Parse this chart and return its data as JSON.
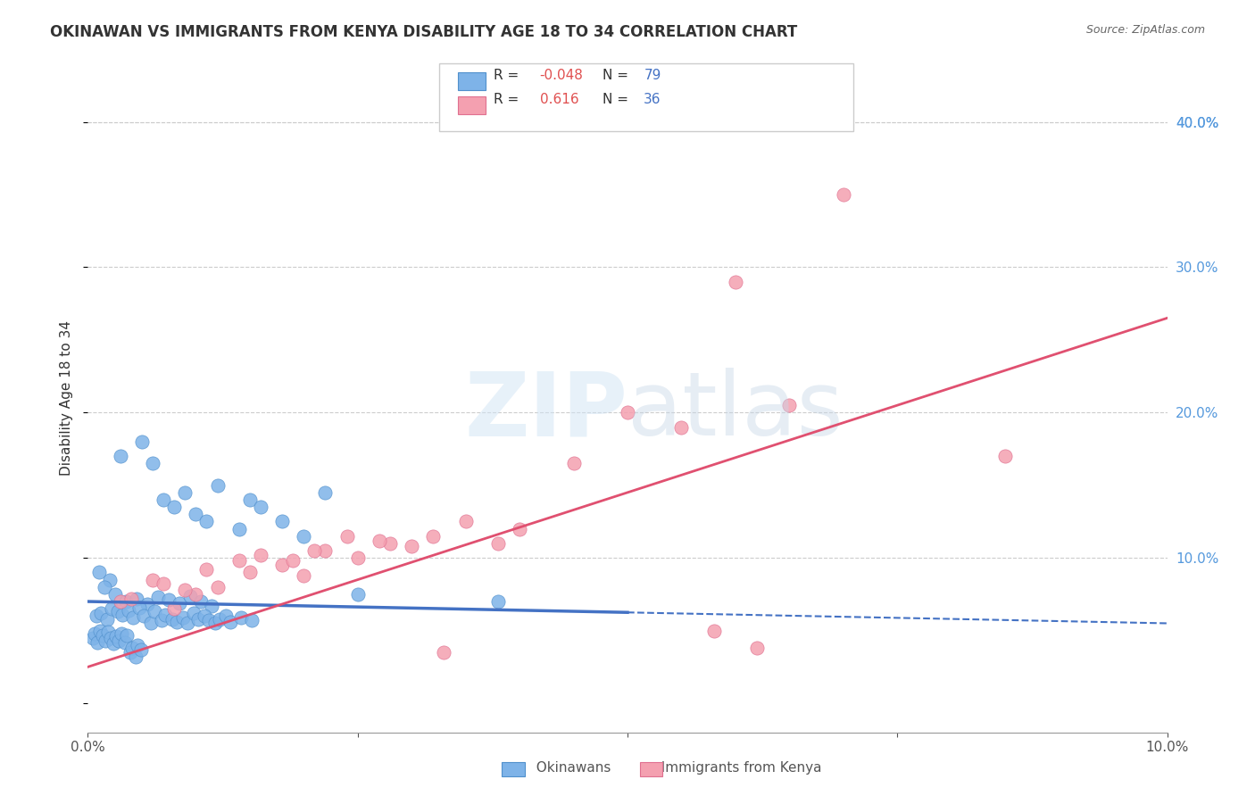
{
  "title": "OKINAWAN VS IMMIGRANTS FROM KENYA DISABILITY AGE 18 TO 34 CORRELATION CHART",
  "source": "Source: ZipAtlas.com",
  "xlabel": "",
  "ylabel": "Disability Age 18 to 34",
  "xlim": [
    0.0,
    10.0
  ],
  "ylim": [
    -2.0,
    44.0
  ],
  "x_tick_labels": [
    "0.0%",
    "10.0%"
  ],
  "x_tick_positions": [
    0.0,
    10.0
  ],
  "y_tick_labels": [
    "10.0%",
    "20.0%",
    "30.0%",
    "40.0%"
  ],
  "y_tick_positions": [
    10.0,
    20.0,
    30.0,
    40.0
  ],
  "okinawan_color": "#7EB3E8",
  "kenya_color": "#F4A0B0",
  "okinawan_R": -0.048,
  "okinawan_N": 79,
  "kenya_R": 0.616,
  "kenya_N": 36,
  "legend_label_1": "R = -0.048   N = 79",
  "legend_label_2": "R =  0.616   N = 36",
  "watermark": "ZIPatlas",
  "background_color": "#ffffff",
  "okinawan_x": [
    0.3,
    0.5,
    0.6,
    0.7,
    0.8,
    0.9,
    1.0,
    1.1,
    1.2,
    1.4,
    1.5,
    1.6,
    1.8,
    2.0,
    2.2,
    2.5,
    3.8,
    0.1,
    0.2,
    0.15,
    0.25,
    0.35,
    0.45,
    0.55,
    0.65,
    0.75,
    0.85,
    0.95,
    1.05,
    1.15,
    0.08,
    0.12,
    0.18,
    0.22,
    0.28,
    0.32,
    0.38,
    0.42,
    0.48,
    0.52,
    0.58,
    0.62,
    0.68,
    0.72,
    0.78,
    0.82,
    0.88,
    0.92,
    0.98,
    1.02,
    1.08,
    1.12,
    1.18,
    1.22,
    1.28,
    1.32,
    1.42,
    1.52,
    0.05,
    0.06,
    0.09,
    0.11,
    0.14,
    0.16,
    0.19,
    0.21,
    0.24,
    0.26,
    0.29,
    0.31,
    0.34,
    0.36,
    0.39,
    0.41,
    0.44,
    0.46,
    0.49
  ],
  "okinawan_y": [
    17.0,
    18.0,
    16.5,
    14.0,
    13.5,
    14.5,
    13.0,
    12.5,
    15.0,
    12.0,
    14.0,
    13.5,
    12.5,
    11.5,
    14.5,
    7.5,
    7.0,
    9.0,
    8.5,
    8.0,
    7.5,
    7.0,
    7.2,
    6.8,
    7.3,
    7.1,
    6.9,
    7.4,
    7.0,
    6.7,
    6.0,
    6.2,
    5.8,
    6.5,
    6.3,
    6.1,
    6.4,
    5.9,
    6.6,
    6.0,
    5.5,
    6.3,
    5.7,
    6.1,
    5.8,
    5.6,
    5.9,
    5.5,
    6.2,
    5.8,
    6.0,
    5.7,
    5.5,
    5.8,
    6.0,
    5.6,
    5.9,
    5.7,
    4.5,
    4.8,
    4.2,
    5.0,
    4.7,
    4.3,
    4.9,
    4.5,
    4.1,
    4.6,
    4.3,
    4.8,
    4.2,
    4.7,
    3.5,
    3.8,
    3.2,
    4.0,
    3.7
  ],
  "kenya_x": [
    0.3,
    0.6,
    0.8,
    1.0,
    1.2,
    1.5,
    1.8,
    2.0,
    2.2,
    2.5,
    2.8,
    3.0,
    3.2,
    3.5,
    3.8,
    4.0,
    4.5,
    5.0,
    5.5,
    6.0,
    6.5,
    7.0,
    8.5,
    0.4,
    0.7,
    0.9,
    1.1,
    1.4,
    1.6,
    1.9,
    2.1,
    2.4,
    2.7,
    3.3,
    5.8,
    6.2
  ],
  "kenya_y": [
    7.0,
    8.5,
    6.5,
    7.5,
    8.0,
    9.0,
    9.5,
    8.8,
    10.5,
    10.0,
    11.0,
    10.8,
    11.5,
    12.5,
    11.0,
    12.0,
    16.5,
    20.0,
    19.0,
    29.0,
    20.5,
    35.0,
    17.0,
    7.2,
    8.2,
    7.8,
    9.2,
    9.8,
    10.2,
    9.8,
    10.5,
    11.5,
    11.2,
    3.5,
    5.0,
    3.8
  ]
}
